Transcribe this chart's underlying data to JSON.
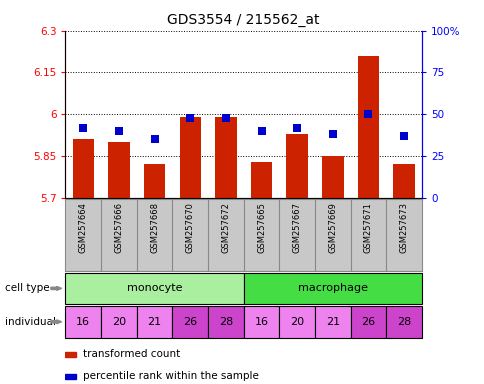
{
  "title": "GDS3554 / 215562_at",
  "samples": [
    "GSM257664",
    "GSM257666",
    "GSM257668",
    "GSM257670",
    "GSM257672",
    "GSM257665",
    "GSM257667",
    "GSM257669",
    "GSM257671",
    "GSM257673"
  ],
  "red_values": [
    5.91,
    5.9,
    5.82,
    5.99,
    5.99,
    5.83,
    5.93,
    5.85,
    6.21,
    5.82
  ],
  "blue_values_pct": [
    42,
    40,
    35,
    48,
    48,
    40,
    42,
    38,
    50,
    37
  ],
  "ymin": 5.7,
  "ymax": 6.3,
  "yticks": [
    5.7,
    5.85,
    6.0,
    6.15,
    6.3
  ],
  "ytick_labels": [
    "5.7",
    "5.85",
    "6",
    "6.15",
    "6.3"
  ],
  "right_yticks": [
    0,
    25,
    50,
    75,
    100
  ],
  "right_ytick_labels": [
    "0",
    "25",
    "50",
    "75",
    "100%"
  ],
  "individuals": [
    16,
    20,
    21,
    26,
    28,
    16,
    20,
    21,
    26,
    28
  ],
  "individual_highlight": [
    3,
    4,
    8,
    9
  ],
  "individual_color_normal": "#ee82ee",
  "individual_color_highlight": "#cc44cc",
  "monocyte_color": "#aaeea0",
  "macrophage_color": "#44dd44",
  "bar_color": "#cc2200",
  "dot_color": "#0000cc",
  "bar_width": 0.6,
  "dot_size": 35,
  "tick_label_fontsize": 7.5,
  "title_fontsize": 10,
  "xtick_bg_color": "#c8c8c8",
  "xtick_border_color": "#888888"
}
